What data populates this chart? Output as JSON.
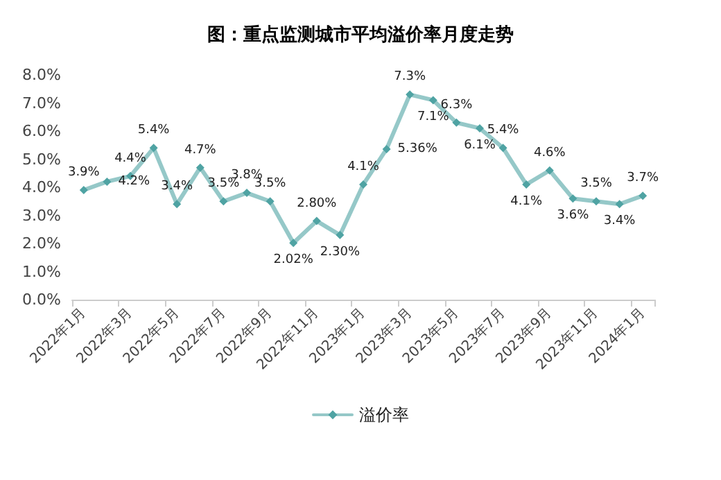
{
  "chart_data": {
    "type": "line",
    "title": "图：重点监测城市平均溢价率月度走势",
    "categories": [
      "2022年1月",
      null,
      "2022年3月",
      null,
      "2022年5月",
      null,
      "2022年7月",
      null,
      "2022年9月",
      null,
      "2022年11月",
      null,
      "2023年1月",
      null,
      "2023年3月",
      null,
      "2023年5月",
      null,
      "2023年7月",
      null,
      "2023年9月",
      null,
      "2023年11月",
      null,
      "2024年1月"
    ],
    "series": [
      {
        "name": "溢价率",
        "color": "#4fa3a3",
        "values": [
          3.9,
          4.2,
          4.4,
          5.4,
          3.4,
          4.7,
          3.5,
          3.8,
          3.5,
          2.02,
          2.8,
          2.3,
          4.1,
          5.36,
          7.3,
          7.1,
          6.3,
          6.1,
          5.4,
          4.1,
          4.6,
          3.6,
          3.5,
          3.4,
          3.7
        ],
        "value_labels": [
          "3.9%",
          "4.2%",
          "4.4%",
          "5.4%",
          "3.4%",
          "4.7%",
          "3.5%",
          "3.8%",
          "3.5%",
          "2.02%",
          "2.80%",
          "2.30%",
          "4.1%",
          "5.36%",
          "7.3%",
          "7.1%",
          "6.3%",
          "6.1%",
          "5.4%",
          "4.1%",
          "4.6%",
          "3.6%",
          "3.5%",
          "3.4%",
          "3.7%"
        ]
      }
    ],
    "ylim": [
      0,
      8
    ],
    "yticks": [
      {
        "value": 0,
        "label": "0.0%"
      },
      {
        "value": 1,
        "label": "1.0%"
      },
      {
        "value": 2,
        "label": "2.0%"
      },
      {
        "value": 3,
        "label": "3.0%"
      },
      {
        "value": 4,
        "label": "4.0%"
      },
      {
        "value": 5,
        "label": "5.0%"
      },
      {
        "value": 6,
        "label": "6.0%"
      },
      {
        "value": 7,
        "label": "7.0%"
      },
      {
        "value": 8,
        "label": "8.0%"
      }
    ],
    "grid": false,
    "legend": "bottom",
    "marker": "diamond",
    "line_style": "solid"
  }
}
